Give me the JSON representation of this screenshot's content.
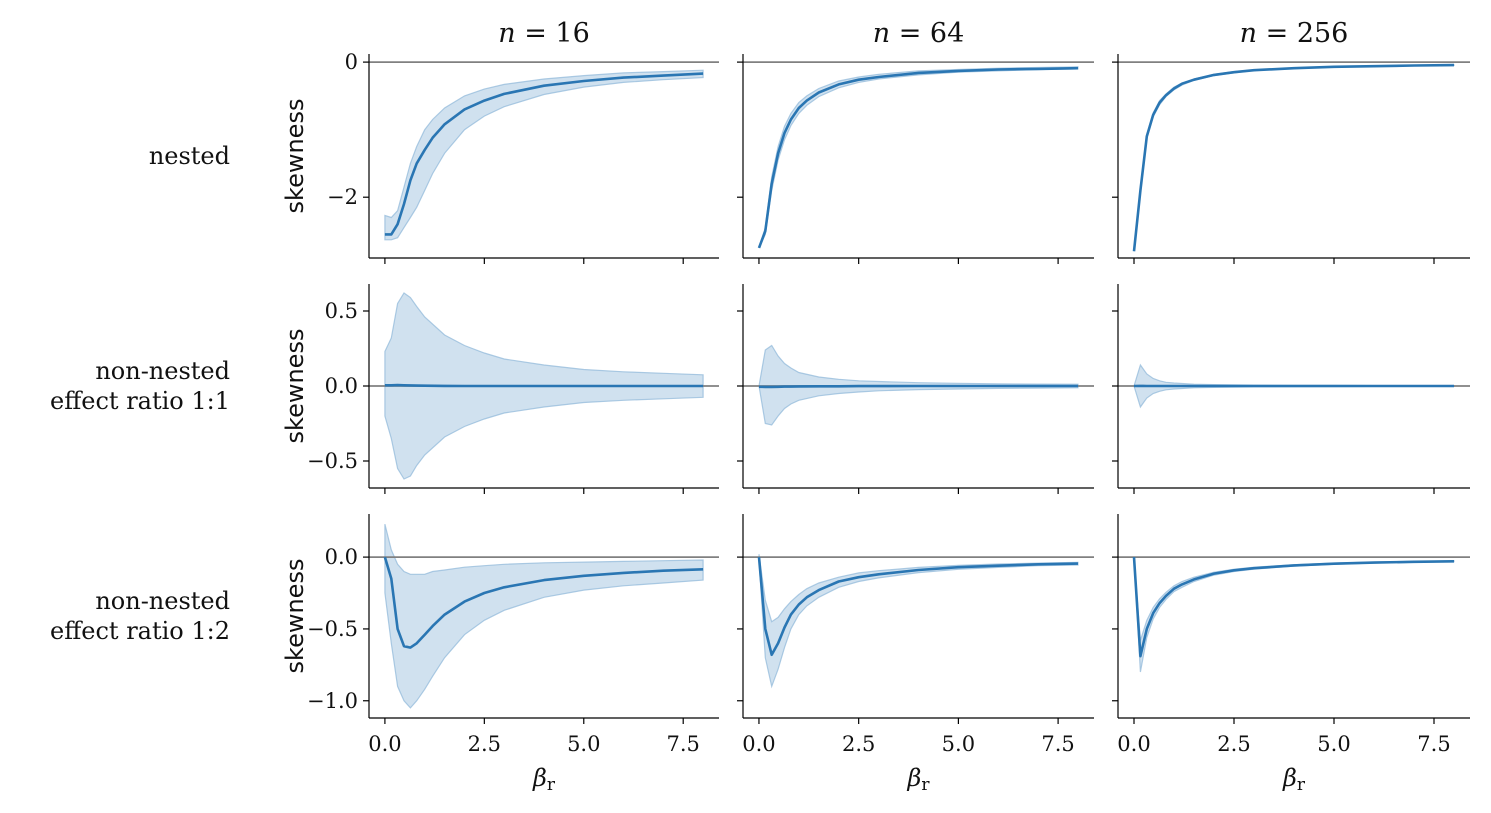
{
  "colors": {
    "line": "#2a76b3",
    "band": "#a9c8e2",
    "band_edge": "#8db6d8",
    "zero_line": "#808080"
  },
  "columns": [
    "n = 16",
    "n = 64",
    "n = 256"
  ],
  "rows": [
    [
      "nested"
    ],
    [
      "non-nested",
      "effect ratio 1:1"
    ],
    [
      "non-nested",
      "effect ratio 1:2"
    ]
  ],
  "ylabel": "skewness",
  "xlabel": "β",
  "xlabel_sub": "r",
  "chart_data": {
    "type": "line",
    "layout": "3x3 grid, rows share y-axis, columns share x-axis",
    "xlim": [
      -0.4,
      8.4
    ],
    "xticks": [
      0.0,
      2.5,
      5.0,
      7.5
    ],
    "xtick_labels": [
      "0.0",
      "2.5",
      "5.0",
      "7.5"
    ],
    "horizontal_reference_line": 0,
    "rows": [
      {
        "label": "nested",
        "ylim": [
          -2.9,
          0.12
        ],
        "yticks": [
          0,
          -2
        ],
        "ytick_labels": [
          "0",
          "−2"
        ],
        "panels": [
          {
            "title": "n = 16",
            "x": [
              0.0,
              0.16,
              0.32,
              0.48,
              0.64,
              0.8,
              1.0,
              1.2,
              1.5,
              2.0,
              2.5,
              3.0,
              4.0,
              5.0,
              6.0,
              7.0,
              8.0
            ],
            "mean": [
              -2.55,
              -2.55,
              -2.4,
              -2.1,
              -1.75,
              -1.5,
              -1.3,
              -1.12,
              -0.92,
              -0.7,
              -0.57,
              -0.47,
              -0.35,
              -0.28,
              -0.23,
              -0.2,
              -0.17
            ],
            "upper": [
              -2.27,
              -2.3,
              -2.2,
              -1.85,
              -1.5,
              -1.25,
              -1.0,
              -0.85,
              -0.68,
              -0.5,
              -0.4,
              -0.33,
              -0.25,
              -0.2,
              -0.16,
              -0.14,
              -0.12
            ],
            "lower": [
              -2.63,
              -2.63,
              -2.6,
              -2.45,
              -2.3,
              -2.15,
              -1.9,
              -1.65,
              -1.35,
              -1.0,
              -0.8,
              -0.66,
              -0.48,
              -0.37,
              -0.3,
              -0.26,
              -0.23
            ]
          },
          {
            "title": "n = 64",
            "x": [
              0.0,
              0.16,
              0.32,
              0.48,
              0.64,
              0.8,
              1.0,
              1.2,
              1.5,
              2.0,
              2.5,
              3.0,
              4.0,
              5.0,
              6.0,
              7.0,
              8.0
            ],
            "mean": [
              -2.75,
              -2.5,
              -1.8,
              -1.35,
              -1.05,
              -0.85,
              -0.68,
              -0.57,
              -0.45,
              -0.33,
              -0.26,
              -0.22,
              -0.16,
              -0.13,
              -0.11,
              -0.1,
              -0.09
            ],
            "upper": [
              -2.75,
              -2.45,
              -1.7,
              -1.25,
              -0.95,
              -0.76,
              -0.6,
              -0.5,
              -0.39,
              -0.28,
              -0.22,
              -0.18,
              -0.13,
              -0.11,
              -0.09,
              -0.08,
              -0.07
            ],
            "lower": [
              -2.75,
              -2.55,
              -1.9,
              -1.45,
              -1.15,
              -0.94,
              -0.76,
              -0.64,
              -0.51,
              -0.38,
              -0.3,
              -0.25,
              -0.19,
              -0.15,
              -0.13,
              -0.11,
              -0.1
            ]
          },
          {
            "title": "n = 256",
            "x": [
              0.0,
              0.16,
              0.32,
              0.48,
              0.64,
              0.8,
              1.0,
              1.2,
              1.5,
              2.0,
              2.5,
              3.0,
              4.0,
              5.0,
              6.0,
              7.0,
              8.0
            ],
            "mean": [
              -2.8,
              -1.9,
              -1.1,
              -0.78,
              -0.6,
              -0.49,
              -0.39,
              -0.32,
              -0.26,
              -0.19,
              -0.15,
              -0.12,
              -0.09,
              -0.07,
              -0.06,
              -0.05,
              -0.045
            ],
            "upper": [
              -2.8,
              -1.88,
              -1.07,
              -0.75,
              -0.57,
              -0.47,
              -0.37,
              -0.31,
              -0.25,
              -0.18,
              -0.14,
              -0.115,
              -0.085,
              -0.066,
              -0.055,
              -0.047,
              -0.041
            ],
            "lower": [
              -2.8,
              -1.92,
              -1.13,
              -0.81,
              -0.63,
              -0.51,
              -0.41,
              -0.34,
              -0.27,
              -0.2,
              -0.16,
              -0.125,
              -0.095,
              -0.074,
              -0.065,
              -0.053,
              -0.049
            ]
          }
        ]
      },
      {
        "label": "non-nested effect ratio 1:1",
        "ylim": [
          -0.68,
          0.68
        ],
        "yticks": [
          0.5,
          0.0,
          -0.5
        ],
        "ytick_labels": [
          "0.5",
          "0.0",
          "−0.5"
        ],
        "panels": [
          {
            "title": "n = 16",
            "x": [
              0.0,
              0.16,
              0.32,
              0.48,
              0.64,
              0.8,
              1.0,
              1.5,
              2.0,
              2.5,
              3.0,
              4.0,
              5.0,
              6.0,
              7.0,
              8.0
            ],
            "mean": [
              0.005,
              0.005,
              0.006,
              0.005,
              0.004,
              0.003,
              0.002,
              0.001,
              0.0,
              0.0,
              0.0,
              0.0,
              0.0,
              0.0,
              0.0,
              0.0
            ],
            "upper": [
              0.23,
              0.32,
              0.55,
              0.62,
              0.59,
              0.53,
              0.46,
              0.34,
              0.27,
              0.22,
              0.18,
              0.14,
              0.11,
              0.095,
              0.085,
              0.075
            ],
            "lower": [
              -0.2,
              -0.35,
              -0.55,
              -0.62,
              -0.6,
              -0.53,
              -0.46,
              -0.34,
              -0.27,
              -0.22,
              -0.18,
              -0.14,
              -0.11,
              -0.095,
              -0.085,
              -0.075
            ]
          },
          {
            "title": "n = 64",
            "x": [
              0.0,
              0.16,
              0.32,
              0.48,
              0.64,
              0.8,
              1.0,
              1.5,
              2.0,
              2.5,
              3.0,
              4.0,
              5.0,
              6.0,
              7.0,
              8.0
            ],
            "mean": [
              -0.005,
              -0.006,
              -0.006,
              -0.005,
              -0.004,
              -0.004,
              -0.003,
              -0.002,
              -0.002,
              -0.001,
              -0.001,
              0.0,
              0.0,
              0.0,
              0.0,
              0.0
            ],
            "upper": [
              0.0,
              0.24,
              0.27,
              0.2,
              0.15,
              0.12,
              0.09,
              0.06,
              0.045,
              0.035,
              0.03,
              0.022,
              0.018,
              0.015,
              0.013,
              0.012
            ],
            "lower": [
              0.0,
              -0.25,
              -0.26,
              -0.2,
              -0.15,
              -0.12,
              -0.095,
              -0.065,
              -0.05,
              -0.04,
              -0.032,
              -0.024,
              -0.02,
              -0.016,
              -0.014,
              -0.012
            ]
          },
          {
            "title": "n = 256",
            "x": [
              0.0,
              0.16,
              0.32,
              0.48,
              0.64,
              0.8,
              1.0,
              1.5,
              2.0,
              2.5,
              3.0,
              4.0,
              5.0,
              6.0,
              7.0,
              8.0
            ],
            "mean": [
              0.0,
              0.001,
              0.0,
              0.0,
              0.0,
              0.0,
              0.0,
              0.0,
              0.0,
              0.0,
              0.0,
              0.0,
              0.0,
              0.0,
              0.0,
              0.0
            ],
            "upper": [
              0.0,
              0.14,
              0.08,
              0.05,
              0.035,
              0.025,
              0.02,
              0.012,
              0.009,
              0.007,
              0.006,
              0.005,
              0.004,
              0.003,
              0.003,
              0.003
            ],
            "lower": [
              0.0,
              -0.14,
              -0.08,
              -0.05,
              -0.035,
              -0.025,
              -0.02,
              -0.012,
              -0.009,
              -0.007,
              -0.006,
              -0.005,
              -0.004,
              -0.003,
              -0.003,
              -0.003
            ]
          }
        ]
      },
      {
        "label": "non-nested effect ratio 1:2",
        "ylim": [
          -1.12,
          0.3
        ],
        "yticks": [
          0.0,
          -0.5,
          -1.0
        ],
        "ytick_labels": [
          "0.0",
          "−0.5",
          "−1.0"
        ],
        "panels": [
          {
            "title": "n = 16",
            "x": [
              0.0,
              0.16,
              0.32,
              0.48,
              0.64,
              0.8,
              1.0,
              1.2,
              1.5,
              2.0,
              2.5,
              3.0,
              4.0,
              5.0,
              6.0,
              7.0,
              8.0
            ],
            "mean": [
              0.0,
              -0.15,
              -0.5,
              -0.62,
              -0.63,
              -0.6,
              -0.54,
              -0.48,
              -0.4,
              -0.31,
              -0.25,
              -0.21,
              -0.16,
              -0.13,
              -0.11,
              -0.095,
              -0.085
            ],
            "upper": [
              0.23,
              0.05,
              -0.05,
              -0.1,
              -0.12,
              -0.12,
              -0.12,
              -0.1,
              -0.09,
              -0.07,
              -0.06,
              -0.05,
              -0.04,
              -0.035,
              -0.03,
              -0.025,
              -0.02
            ],
            "lower": [
              -0.25,
              -0.6,
              -0.9,
              -1.0,
              -1.05,
              -1.0,
              -0.92,
              -0.83,
              -0.7,
              -0.54,
              -0.44,
              -0.37,
              -0.28,
              -0.23,
              -0.2,
              -0.18,
              -0.16
            ]
          },
          {
            "title": "n = 64",
            "x": [
              0.0,
              0.16,
              0.32,
              0.48,
              0.64,
              0.8,
              1.0,
              1.2,
              1.5,
              2.0,
              2.5,
              3.0,
              4.0,
              5.0,
              6.0,
              7.0,
              8.0
            ],
            "mean": [
              0.0,
              -0.5,
              -0.68,
              -0.6,
              -0.49,
              -0.4,
              -0.33,
              -0.28,
              -0.23,
              -0.17,
              -0.14,
              -0.12,
              -0.09,
              -0.07,
              -0.06,
              -0.05,
              -0.045
            ],
            "upper": [
              0.02,
              -0.3,
              -0.45,
              -0.42,
              -0.36,
              -0.31,
              -0.26,
              -0.22,
              -0.18,
              -0.14,
              -0.11,
              -0.095,
              -0.072,
              -0.058,
              -0.048,
              -0.042,
              -0.037
            ],
            "lower": [
              -0.02,
              -0.7,
              -0.9,
              -0.78,
              -0.63,
              -0.5,
              -0.4,
              -0.34,
              -0.28,
              -0.21,
              -0.17,
              -0.145,
              -0.108,
              -0.085,
              -0.072,
              -0.06,
              -0.055
            ]
          },
          {
            "title": "n = 256",
            "x": [
              0.0,
              0.16,
              0.32,
              0.48,
              0.64,
              0.8,
              1.0,
              1.2,
              1.5,
              2.0,
              2.5,
              3.0,
              4.0,
              5.0,
              6.0,
              7.0,
              8.0
            ],
            "mean": [
              0.0,
              -0.69,
              -0.5,
              -0.39,
              -0.32,
              -0.27,
              -0.22,
              -0.19,
              -0.155,
              -0.115,
              -0.092,
              -0.077,
              -0.058,
              -0.046,
              -0.038,
              -0.033,
              -0.029
            ],
            "upper": [
              0.0,
              -0.58,
              -0.44,
              -0.35,
              -0.29,
              -0.245,
              -0.2,
              -0.17,
              -0.14,
              -0.105,
              -0.084,
              -0.07,
              -0.053,
              -0.042,
              -0.035,
              -0.03,
              -0.026
            ],
            "lower": [
              0.0,
              -0.8,
              -0.56,
              -0.43,
              -0.35,
              -0.295,
              -0.24,
              -0.21,
              -0.17,
              -0.125,
              -0.1,
              -0.084,
              -0.063,
              -0.05,
              -0.041,
              -0.036,
              -0.032
            ]
          }
        ]
      }
    ]
  }
}
